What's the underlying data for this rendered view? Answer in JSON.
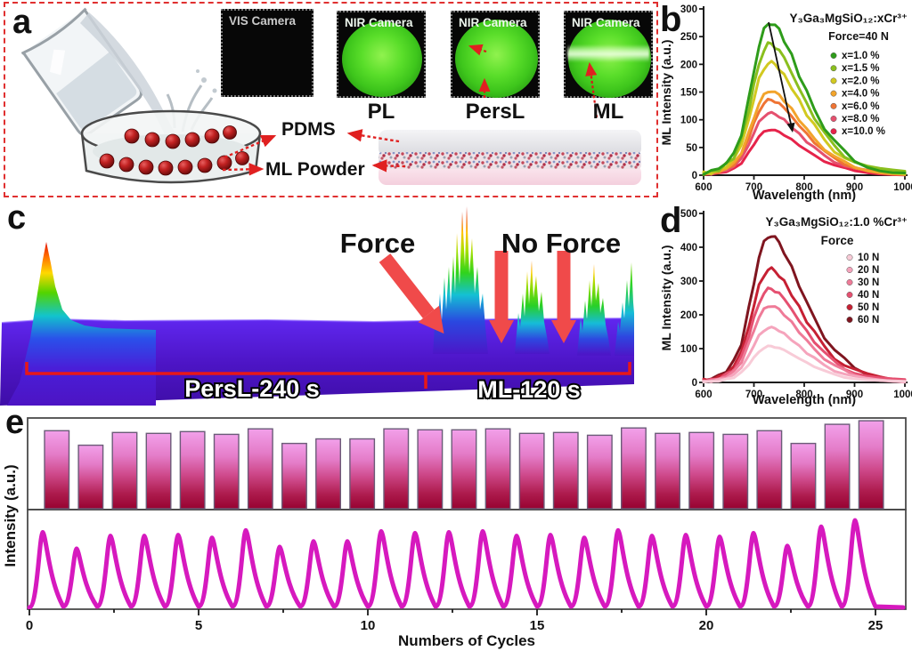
{
  "panel_a": {
    "letter": "a",
    "cameras": [
      {
        "label": "VIS Camera",
        "mode": ""
      },
      {
        "label": "NIR Camera",
        "mode": "PL"
      },
      {
        "label": "NIR Camera",
        "mode": "PersL"
      },
      {
        "label": "NIR Camera",
        "mode": "ML"
      }
    ],
    "pdms_label": "PDMS",
    "ml_powder_label": "ML Powder"
  },
  "panel_b": {
    "letter": "b"
  },
  "panel_c": {
    "letter": "c"
  },
  "panel_d": {
    "letter": "d"
  },
  "panel_e": {
    "letter": "e"
  },
  "chart_data": [
    {
      "panel": "b",
      "type": "line",
      "title": "Y₃Ga₃MgSiO₁₂:xCr³⁺",
      "annotation": "Force=40 N",
      "xlabel": "Wavelength (nm)",
      "ylabel": "ML Intensity (a.u.)",
      "xlim": [
        600,
        1000
      ],
      "ylim": [
        0,
        300
      ],
      "xticks": [
        600,
        700,
        800,
        900,
        1000
      ],
      "yticks": [
        0,
        50,
        100,
        150,
        200,
        250,
        300
      ],
      "profile": [
        [
          600,
          0.015
        ],
        [
          615,
          0.025
        ],
        [
          630,
          0.045
        ],
        [
          645,
          0.08
        ],
        [
          660,
          0.14
        ],
        [
          675,
          0.27
        ],
        [
          690,
          0.5
        ],
        [
          700,
          0.68
        ],
        [
          710,
          0.85
        ],
        [
          720,
          0.95
        ],
        [
          728,
          0.995
        ],
        [
          735,
          1.0
        ],
        [
          742,
          0.98
        ],
        [
          750,
          0.95
        ],
        [
          760,
          0.89
        ],
        [
          775,
          0.78
        ],
        [
          790,
          0.66
        ],
        [
          805,
          0.545
        ],
        [
          820,
          0.44
        ],
        [
          840,
          0.315
        ],
        [
          860,
          0.22
        ],
        [
          880,
          0.152
        ],
        [
          900,
          0.103
        ],
        [
          925,
          0.066
        ],
        [
          950,
          0.042
        ],
        [
          975,
          0.026
        ],
        [
          1000,
          0.016
        ]
      ],
      "series": [
        {
          "name": "x=1.0 %",
          "peak": 275,
          "color": "#2e9c1a"
        },
        {
          "name": "x=1.5 %",
          "peak": 237,
          "color": "#8abf1e"
        },
        {
          "name": "x=2.0 %",
          "peak": 203,
          "color": "#d2c920"
        },
        {
          "name": "x=4.0 %",
          "peak": 152,
          "color": "#f2a42c"
        },
        {
          "name": "x=6.0 %",
          "peak": 136,
          "color": "#ef7434"
        },
        {
          "name": "x=8.0 %",
          "peak": 112,
          "color": "#e5506e"
        },
        {
          "name": "x=10.0 %",
          "peak": 82,
          "color": "#e6234a"
        }
      ]
    },
    {
      "panel": "d",
      "type": "line",
      "title": "Y₃Ga₃MgSiO₁₂:1.0 %Cr³⁺",
      "annotation": "Force",
      "xlabel": "Wavelength (nm)",
      "ylabel": "ML Intensity (a.u.)",
      "xlim": [
        600,
        1000
      ],
      "ylim": [
        0,
        500
      ],
      "xticks": [
        600,
        700,
        800,
        900,
        1000
      ],
      "yticks": [
        0,
        100,
        200,
        300,
        400,
        500
      ],
      "profile": [
        [
          600,
          0.015
        ],
        [
          615,
          0.025
        ],
        [
          630,
          0.045
        ],
        [
          645,
          0.08
        ],
        [
          660,
          0.14
        ],
        [
          675,
          0.27
        ],
        [
          690,
          0.5
        ],
        [
          700,
          0.68
        ],
        [
          710,
          0.85
        ],
        [
          720,
          0.95
        ],
        [
          728,
          0.995
        ],
        [
          735,
          1.0
        ],
        [
          742,
          0.98
        ],
        [
          750,
          0.95
        ],
        [
          760,
          0.89
        ],
        [
          775,
          0.78
        ],
        [
          790,
          0.66
        ],
        [
          805,
          0.545
        ],
        [
          820,
          0.44
        ],
        [
          840,
          0.315
        ],
        [
          860,
          0.22
        ],
        [
          880,
          0.152
        ],
        [
          900,
          0.103
        ],
        [
          925,
          0.066
        ],
        [
          950,
          0.042
        ],
        [
          975,
          0.026
        ],
        [
          1000,
          0.016
        ]
      ],
      "series": [
        {
          "name": "10 N",
          "peak": 107,
          "color": "#f8cbd7"
        },
        {
          "name": "20 N",
          "peak": 162,
          "color": "#f5a4bc"
        },
        {
          "name": "30 N",
          "peak": 227,
          "color": "#ef7b98"
        },
        {
          "name": "40 N",
          "peak": 277,
          "color": "#e55070"
        },
        {
          "name": "50 N",
          "peak": 335,
          "color": "#c62033"
        },
        {
          "name": "60 N",
          "peak": 435,
          "color": "#7f151f"
        }
      ]
    },
    {
      "panel": "c",
      "type": "3d-waterfall",
      "annotations": [
        "Force",
        "No Force"
      ],
      "segments": [
        {
          "label": "PersL-240 s",
          "duration_s": 240
        },
        {
          "label": "ML-120 s",
          "duration_s": 120
        }
      ]
    },
    {
      "panel": "e-top",
      "type": "bar",
      "ylabel": "Intensity (a.u.)",
      "cycles": 25,
      "values": [
        0.86,
        0.7,
        0.84,
        0.83,
        0.85,
        0.82,
        0.88,
        0.72,
        0.77,
        0.77,
        0.88,
        0.87,
        0.87,
        0.88,
        0.83,
        0.84,
        0.81,
        0.89,
        0.83,
        0.84,
        0.82,
        0.86,
        0.72,
        0.93,
        0.97
      ],
      "bar_gradient": [
        "#f2a0ea",
        "#970231"
      ]
    },
    {
      "panel": "e-bottom",
      "type": "line",
      "xlabel": "Numbers of Cycles",
      "xticks": [
        0,
        5,
        10,
        15,
        20,
        25
      ],
      "peaks": [
        0.84,
        0.66,
        0.8,
        0.8,
        0.81,
        0.78,
        0.86,
        0.68,
        0.74,
        0.74,
        0.85,
        0.83,
        0.84,
        0.85,
        0.8,
        0.81,
        0.78,
        0.86,
        0.8,
        0.81,
        0.79,
        0.83,
        0.69,
        0.9,
        0.97
      ],
      "color": "#d619be"
    }
  ]
}
